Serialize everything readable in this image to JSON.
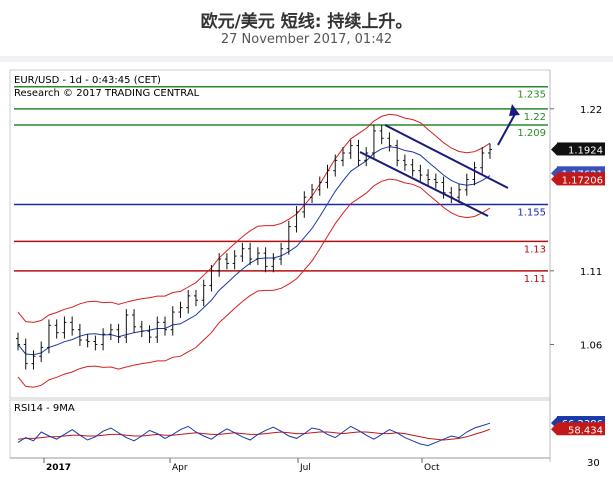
{
  "header": {
    "title": "欧元/美元 短线: 持续上升。",
    "datetime": "27 November 2017, 01:42"
  },
  "chart_data": [
    {
      "type": "candlestick",
      "panel": "price",
      "symbol_line": "EUR/USD - 1d - 0:43:45 (CET)",
      "research_line": "Research © 2017 TRADING CENTRAL",
      "y_ticks": [
        1.06,
        1.11,
        1.22
      ],
      "ylim": [
        1.025,
        1.245
      ],
      "x_ticks": [
        "2017",
        "Apr",
        "Jul",
        "Oct"
      ],
      "levels": [
        {
          "label": "1.235",
          "value": 1.235,
          "color": "#2a8a2a"
        },
        {
          "label": "1.22",
          "value": 1.22,
          "color": "#2a8a2a"
        },
        {
          "label": "1.209",
          "value": 1.209,
          "color": "#2a8a2a"
        },
        {
          "label": "1.155",
          "value": 1.155,
          "color": "#1a2aa8"
        },
        {
          "label": "1.13",
          "value": 1.13,
          "color": "#b01010"
        },
        {
          "label": "1.11",
          "value": 1.11,
          "color": "#b01010"
        }
      ],
      "price_tags": [
        {
          "label": "1.1924",
          "value": 1.1924,
          "bg": "#111111",
          "fg": "#ffffff"
        },
        {
          "label": "1.17621",
          "value": 1.17621,
          "bg": "#3a4fb8",
          "fg": "#ffffff"
        },
        {
          "label": "1.17206",
          "value": 1.17206,
          "bg": "#c21818",
          "fg": "#ffffff"
        }
      ],
      "closes": [
        1.06,
        1.047,
        1.052,
        1.058,
        1.073,
        1.068,
        1.075,
        1.07,
        1.063,
        1.062,
        1.06,
        1.067,
        1.07,
        1.065,
        1.08,
        1.072,
        1.069,
        1.065,
        1.075,
        1.07,
        1.082,
        1.085,
        1.093,
        1.09,
        1.1,
        1.11,
        1.118,
        1.115,
        1.12,
        1.125,
        1.118,
        1.122,
        1.113,
        1.118,
        1.125,
        1.14,
        1.15,
        1.16,
        1.165,
        1.17,
        1.178,
        1.185,
        1.19,
        1.195,
        1.185,
        1.19,
        1.205,
        1.2,
        1.195,
        1.185,
        1.182,
        1.178,
        1.175,
        1.172,
        1.17,
        1.163,
        1.16,
        1.165,
        1.172,
        1.18,
        1.19,
        1.1924
      ]
    },
    {
      "type": "line",
      "panel": "indicator",
      "title": "RSI14 - 9MA",
      "y_ticks": [
        30
      ],
      "ylim": [
        25,
        80
      ],
      "series": [
        {
          "name": "RSI14",
          "color": "#1a3aa8",
          "last_label": "66.2386",
          "last": 66.2386
        },
        {
          "name": "9MA",
          "color": "#c21818",
          "last_label": "58.434",
          "last": 58.434
        }
      ],
      "rsi": [
        42,
        48,
        44,
        55,
        50,
        46,
        52,
        58,
        51,
        45,
        49,
        56,
        60,
        54,
        48,
        44,
        50,
        57,
        53,
        47,
        52,
        58,
        62,
        55,
        50,
        46,
        53,
        59,
        54,
        49,
        45,
        52,
        57,
        61,
        56,
        50,
        47,
        53,
        60,
        58,
        52,
        48,
        55,
        62,
        57,
        51,
        46,
        52,
        58,
        54,
        48,
        44,
        40,
        38,
        42,
        46,
        50,
        48,
        55,
        60,
        63,
        66
      ],
      "ma": [
        46,
        47,
        47,
        48,
        49,
        49,
        50,
        51,
        51,
        50,
        50,
        51,
        52,
        52,
        51,
        50,
        50,
        51,
        52,
        51,
        51,
        52,
        53,
        54,
        53,
        52,
        52,
        53,
        54,
        53,
        52,
        52,
        53,
        54,
        55,
        54,
        53,
        53,
        54,
        55,
        55,
        54,
        53,
        54,
        55,
        55,
        54,
        53,
        53,
        54,
        53,
        51,
        49,
        47,
        46,
        45,
        46,
        47,
        49,
        52,
        55,
        58.4
      ]
    }
  ]
}
